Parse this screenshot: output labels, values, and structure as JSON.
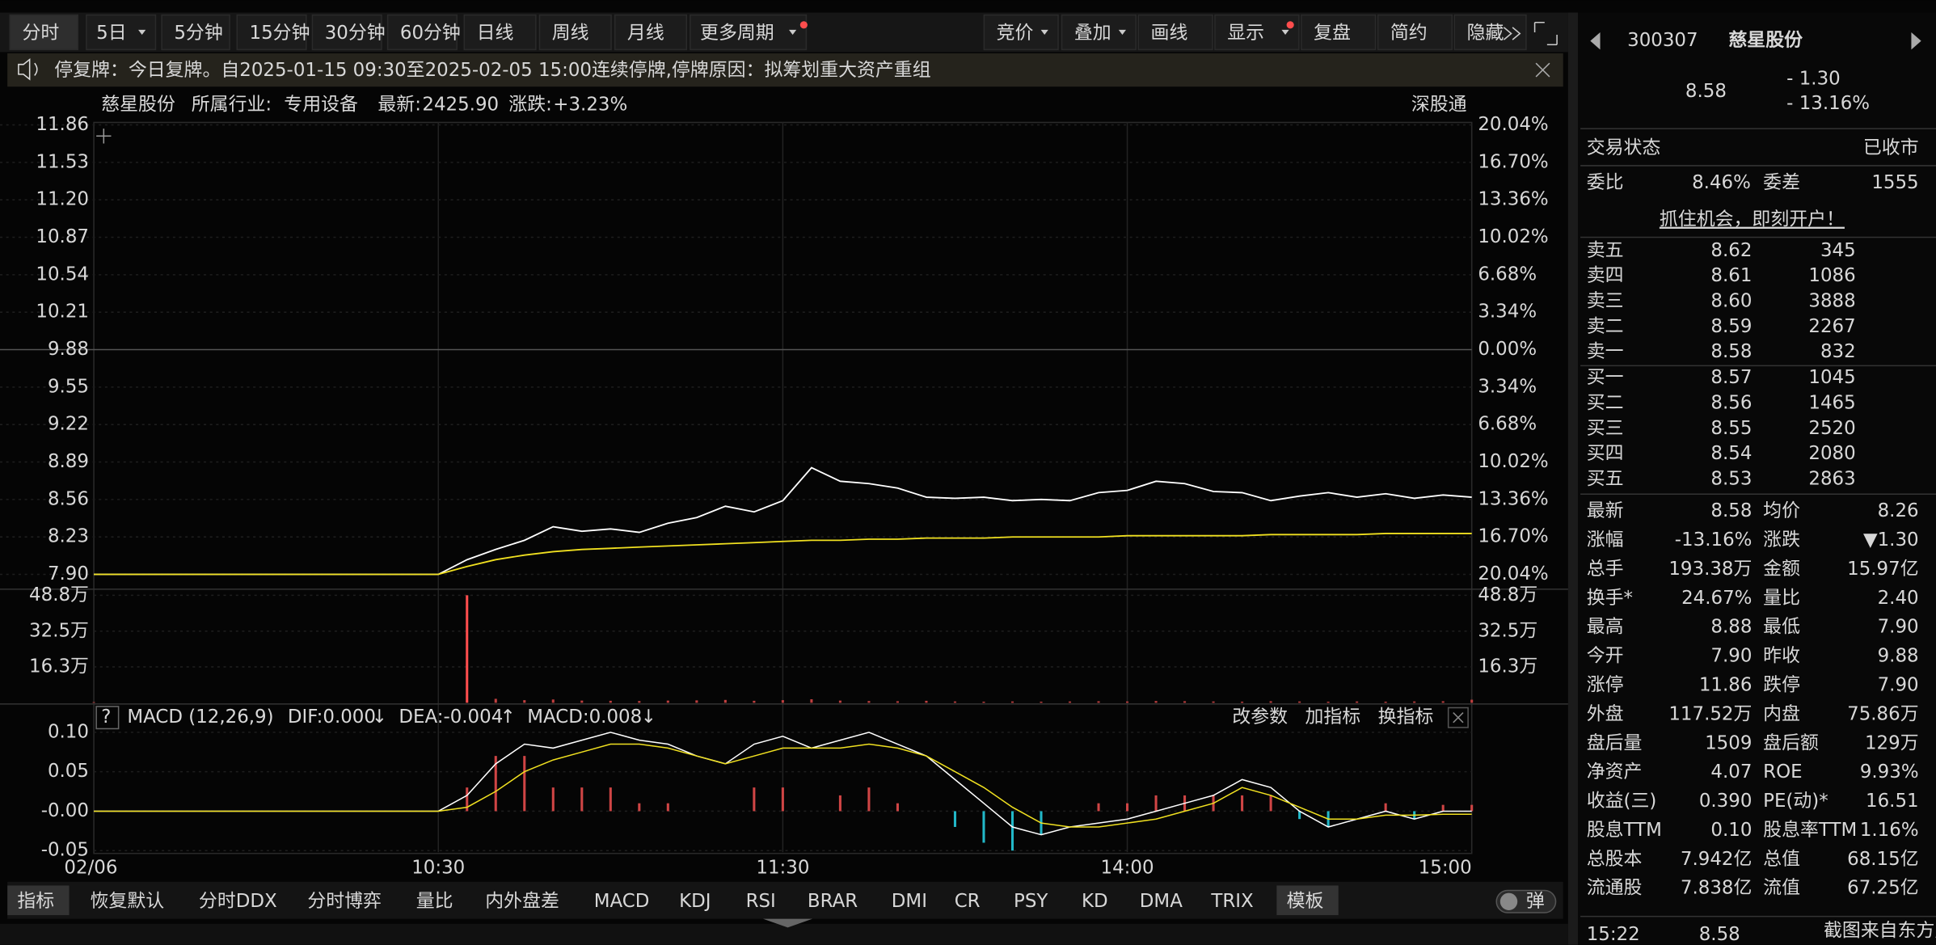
{
  "toolbar": {
    "periods": [
      "分时",
      "5日",
      "5分钟",
      "15分钟",
      "30分钟",
      "60分钟",
      "日线",
      "周线",
      "月线",
      "更多周期"
    ],
    "tools": [
      "竞价",
      "叠加",
      "画线",
      "显示",
      "复盘",
      "简约",
      "隐藏"
    ]
  },
  "notice": "停复牌：今日复牌。自2025-01-15 09:30至2025-02-05 15:00连续停牌,停牌原因：拟筹划重大资产重组",
  "info": {
    "name": "慈星股份",
    "industry_label": "所属行业:",
    "industry": "专用设备",
    "latest_label": "最新:",
    "latest": "2425.90",
    "change_label": "涨跌:",
    "change": "+3.23%",
    "connect": "深股通"
  },
  "price_chart": {
    "type": "line",
    "ylim": [
      7.9,
      11.86
    ],
    "yticks": [
      11.86,
      11.53,
      {
        "value": 11.2,
        "label": "11.20"
      },
      10.87,
      10.54,
      10.21,
      9.88,
      9.55,
      9.22,
      8.89,
      8.56,
      8.23,
      {
        "value": 7.9,
        "label": "7.90"
      }
    ],
    "pct_labels": [
      "20.04%",
      "16.70%",
      "13.36%",
      "10.02%",
      "6.68%",
      "3.34%",
      "0.00%",
      "3.34%",
      "6.68%",
      "10.02%",
      "13.36%",
      "16.70%",
      "20.04%"
    ],
    "time_labels": [
      "02/06",
      "10:30",
      "11:30",
      "14:00",
      "15:00"
    ],
    "series": [
      {
        "name": "价格",
        "color": "#ffffff",
        "values": [
          7.9,
          7.9,
          7.9,
          7.9,
          7.9,
          7.9,
          7.9,
          7.9,
          7.9,
          7.9,
          7.9,
          7.9,
          7.9,
          8.03,
          8.12,
          8.2,
          8.32,
          8.28,
          8.3,
          8.27,
          8.35,
          8.4,
          8.5,
          8.45,
          8.55,
          8.84,
          8.72,
          8.7,
          8.66,
          8.58,
          8.57,
          8.58,
          8.55,
          8.56,
          8.55,
          8.62,
          8.64,
          8.72,
          8.7,
          8.63,
          8.62,
          8.55,
          8.59,
          8.62,
          8.58,
          8.61,
          8.57,
          8.6,
          8.58
        ]
      },
      {
        "name": "均价",
        "color": "#f0e020",
        "values": [
          7.9,
          7.9,
          7.9,
          7.9,
          7.9,
          7.9,
          7.9,
          7.9,
          7.9,
          7.9,
          7.9,
          7.9,
          7.9,
          7.97,
          8.03,
          8.07,
          8.1,
          8.12,
          8.13,
          8.14,
          8.15,
          8.16,
          8.17,
          8.18,
          8.19,
          8.2,
          8.2,
          8.21,
          8.21,
          8.22,
          8.22,
          8.22,
          8.23,
          8.23,
          8.23,
          8.23,
          8.24,
          8.24,
          8.24,
          8.24,
          8.24,
          8.25,
          8.25,
          8.25,
          8.25,
          8.26,
          8.26,
          8.26,
          8.26
        ]
      }
    ]
  },
  "volume_chart": {
    "type": "bar",
    "ylim": [
      0,
      51
    ],
    "yticks": [
      {
        "value": 48.8,
        "label": "48.8万"
      },
      {
        "value": 32.5,
        "label": "32.5万"
      },
      {
        "value": 16.3,
        "label": "16.3万"
      }
    ],
    "values": [
      0.3,
      0,
      0,
      0,
      0,
      0,
      0,
      0,
      0,
      0,
      0,
      0,
      0,
      48.8,
      1.8,
      1.2,
      1.5,
      1.0,
      0.9,
      0.8,
      1.0,
      1.1,
      1.3,
      0.9,
      1.2,
      1.6,
      1.0,
      0.8,
      0.7,
      0.9,
      0.6,
      0.5,
      0.6,
      0.5,
      0.6,
      0.7,
      0.6,
      0.8,
      0.7,
      0.6,
      0.5,
      0.7,
      0.6,
      0.5,
      0.6,
      0.5,
      0.6,
      0.7,
      1.4
    ]
  },
  "macd_chart": {
    "type": "macd",
    "header": {
      "help": "?",
      "name": "MACD (12,26,9)",
      "dif": "DIF:0.000",
      "dif_arrow": "↓",
      "dea": "DEA:-0.004",
      "dea_arrow": "↑",
      "macd": "MACD:0.008",
      "macd_arrow": "↓",
      "actions": [
        "改参数",
        "加指标",
        "换指标"
      ]
    },
    "ylim": [
      -0.052,
      0.128
    ],
    "yticks": [
      {
        "value": 0.1,
        "label": "0.10"
      },
      0.05,
      {
        "value": 0,
        "label": "-0.00"
      },
      -0.05
    ],
    "dif": [
      0,
      0,
      0,
      0,
      0,
      0,
      0,
      0,
      0,
      0,
      0,
      0,
      0,
      0.02,
      0.06,
      0.085,
      0.08,
      0.09,
      0.1,
      0.09,
      0.085,
      0.07,
      0.06,
      0.085,
      0.095,
      0.08,
      0.09,
      0.1,
      0.085,
      0.07,
      0.04,
      0.01,
      -0.02,
      -0.03,
      -0.02,
      -0.015,
      -0.01,
      0,
      0.01,
      0.02,
      0.04,
      0.03,
      0,
      -0.02,
      -0.01,
      0,
      -0.01,
      0,
      0
    ],
    "dea": [
      0,
      0,
      0,
      0,
      0,
      0,
      0,
      0,
      0,
      0,
      0,
      0,
      0,
      0.005,
      0.025,
      0.05,
      0.065,
      0.075,
      0.085,
      0.085,
      0.08,
      0.07,
      0.06,
      0.07,
      0.08,
      0.08,
      0.08,
      0.085,
      0.08,
      0.07,
      0.05,
      0.03,
      0.005,
      -0.015,
      -0.02,
      -0.02,
      -0.015,
      -0.01,
      0,
      0.01,
      0.03,
      0.02,
      0.005,
      -0.01,
      -0.01,
      -0.005,
      -0.005,
      -0.004,
      -0.004
    ],
    "macd": [
      0,
      0,
      0,
      0,
      0,
      0,
      0,
      0,
      0,
      0,
      0,
      0,
      0,
      0.03,
      0.07,
      0.07,
      0.03,
      0.03,
      0.03,
      0.01,
      0.01,
      0,
      0,
      0.03,
      0.03,
      0,
      0.02,
      0.03,
      0.01,
      0,
      -0.02,
      -0.04,
      -0.05,
      -0.03,
      0,
      0.01,
      0.01,
      0.02,
      0.02,
      0.02,
      0.02,
      0.02,
      -0.01,
      -0.02,
      0,
      0.01,
      -0.01,
      0.008,
      0.008
    ]
  },
  "bottom_tabs": [
    "指标",
    "恢复默认",
    "分时DDX",
    "分时博弈",
    "量比",
    "内外盘差",
    "MACD",
    "KDJ",
    "RSI",
    "BRAR",
    "DMI",
    "CR",
    "PSY",
    "KD",
    "DMA",
    "TRIX",
    "模板"
  ],
  "popup_toggle": "弹",
  "quote": {
    "code": "300307",
    "name": "慈星股份",
    "price": "8.58",
    "change": "- 1.30",
    "pct": "- 13.16%",
    "status_label": "交易状态",
    "status": "已收市",
    "ratio_label": "委比",
    "ratio": "8.46%",
    "diff_label": "委差",
    "diff": "1555",
    "promo": "抓住机会，即刻开户！",
    "asks": [
      [
        "卖五",
        "8.62",
        "345"
      ],
      [
        "卖四",
        "8.61",
        "1086"
      ],
      [
        "卖三",
        "8.60",
        "3888"
      ],
      [
        "卖二",
        "8.59",
        "2267"
      ],
      [
        "卖一",
        "8.58",
        "832"
      ]
    ],
    "bids": [
      [
        "买一",
        "8.57",
        "1045"
      ],
      [
        "买二",
        "8.56",
        "1465"
      ],
      [
        "买三",
        "8.55",
        "2520"
      ],
      [
        "买四",
        "8.54",
        "2080"
      ],
      [
        "买五",
        "8.53",
        "2863"
      ]
    ],
    "stats": [
      [
        "最新",
        "8.58",
        "均价",
        "8.26"
      ],
      [
        "涨幅",
        "-13.16%",
        "涨跌",
        "▼1.30"
      ],
      [
        "总手",
        "193.38万",
        "金额",
        "15.97亿"
      ],
      [
        "换手*",
        "24.67%",
        "量比",
        "2.40"
      ],
      [
        "最高",
        "8.88",
        "最低",
        "7.90"
      ],
      [
        "今开",
        "7.90",
        "昨收",
        "9.88"
      ],
      [
        "涨停",
        "11.86",
        "跌停",
        "7.90"
      ],
      [
        "外盘",
        "117.52万",
        "内盘",
        "75.86万"
      ],
      [
        "盘后量",
        "1509",
        "盘后额",
        "129万"
      ],
      [
        "净资产",
        "4.07",
        "ROE",
        "9.93%"
      ],
      [
        "收益(三)",
        "0.390",
        "PE(动)*",
        "16.51"
      ],
      [
        "股息TTM",
        "0.10",
        "股息率TTM",
        "1.16%"
      ],
      [
        "总股本",
        "7.942亿",
        "总值",
        "68.15亿"
      ],
      [
        "流通股",
        "7.838亿",
        "流值",
        "67.25亿"
      ]
    ],
    "stat_colors": [
      [
        "#33dd55",
        "#33dd55"
      ],
      [
        "#33dd55",
        "#33dd55"
      ],
      [
        "#e8e8e8",
        "#33ccff"
      ],
      [
        "#e8e8e8",
        "#ff4d4d"
      ],
      [
        "#33dd55",
        "#33dd55"
      ],
      [
        "#33dd55",
        "#e8e8e8"
      ],
      [
        "#ff4d4d",
        "#33dd55"
      ],
      [
        "#ff4d4d",
        "#33dd55"
      ],
      [
        "#e8e8e8",
        "#33ccff"
      ],
      [
        "#e8e8e8",
        "#e8e8e8"
      ],
      [
        "#e8e8e8",
        "#e8e8e8"
      ],
      [
        "#e8e8e8",
        "#e8e8e8"
      ],
      [
        "#e8e8e8",
        "#e8e8e8"
      ],
      [
        "#e8e8e8",
        "#e8e8e8"
      ]
    ],
    "time": "15:22",
    "last": "8.58",
    "watermark": "截图来自东方财富"
  }
}
